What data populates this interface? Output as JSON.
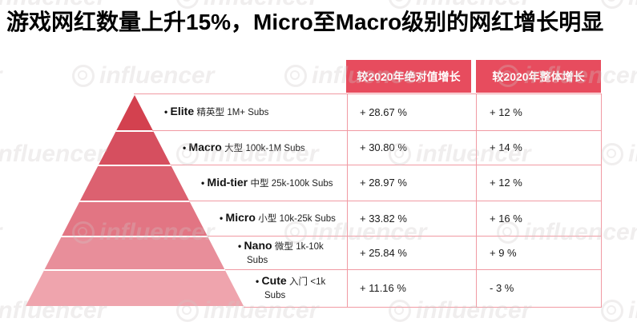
{
  "title": "游戏网红数量上升15%，Micro至Macro级别的网红增长明显",
  "watermark": {
    "text": "influencer"
  },
  "table": {
    "headers": [
      "较2020年绝对值增长",
      "较2020年整体增长"
    ]
  },
  "tiers": [
    {
      "name": "Elite",
      "cn": "精英型",
      "size": "1M+ Subs",
      "abs": "+ 28.67 %",
      "overall": "+ 12 %"
    },
    {
      "name": "Macro",
      "cn": "大型",
      "size": "100k-1M Subs",
      "abs": "+ 30.80 %",
      "overall": "+ 14 %"
    },
    {
      "name": "Mid-tier",
      "cn": "中型",
      "size": "25k-100k Subs",
      "abs": "+ 28.97 %",
      "overall": "+ 12 %"
    },
    {
      "name": "Micro",
      "cn": "小型",
      "size": "10k-25k Subs",
      "abs": "+ 33.82 %",
      "overall": "+ 16 %"
    },
    {
      "name": "Nano",
      "cn": "微型",
      "size": "1k-10k Subs",
      "abs": "+ 25.84 %",
      "overall": "+ 9 %"
    },
    {
      "name": "Cute",
      "cn": "入门",
      "size": "<1k Subs",
      "abs": "+ 11.16 %",
      "overall": "- 3 %"
    }
  ],
  "colors": {
    "header_red": "#E74C5E",
    "grid_pink": "#F19AA3",
    "pyramid_bands": [
      "#D3414F",
      "#D64F5F",
      "#DC6170",
      "#E27583",
      "#E88E9A",
      "#EFA4AD"
    ],
    "title_text": "#000000",
    "header_text": "#FFFFFF"
  },
  "chart_data": {
    "type": "table",
    "title": "游戏网红数量上升15%，Micro至Macro级别的网红增长明显",
    "layout": "pyramid funnel on left (dark red top to light pink bottom), two-column data table on right, watermark 'influencer' tiled",
    "categories": [
      "Elite 精英型 1M+ Subs",
      "Macro 大型 100k-1M Subs",
      "Mid-tier 中型 25k-100k Subs",
      "Micro 小型 10k-25k Subs",
      "Nano 微型 1k-10k Subs",
      "Cute 入门 <1k Subs"
    ],
    "series": [
      {
        "name": "较2020年绝对值增长",
        "values": [
          28.67,
          30.8,
          28.97,
          33.82,
          25.84,
          11.16
        ],
        "unit": "%"
      },
      {
        "name": "较2020年整体增长",
        "values": [
          12,
          14,
          12,
          16,
          9,
          -3
        ],
        "unit": "%"
      }
    ]
  }
}
